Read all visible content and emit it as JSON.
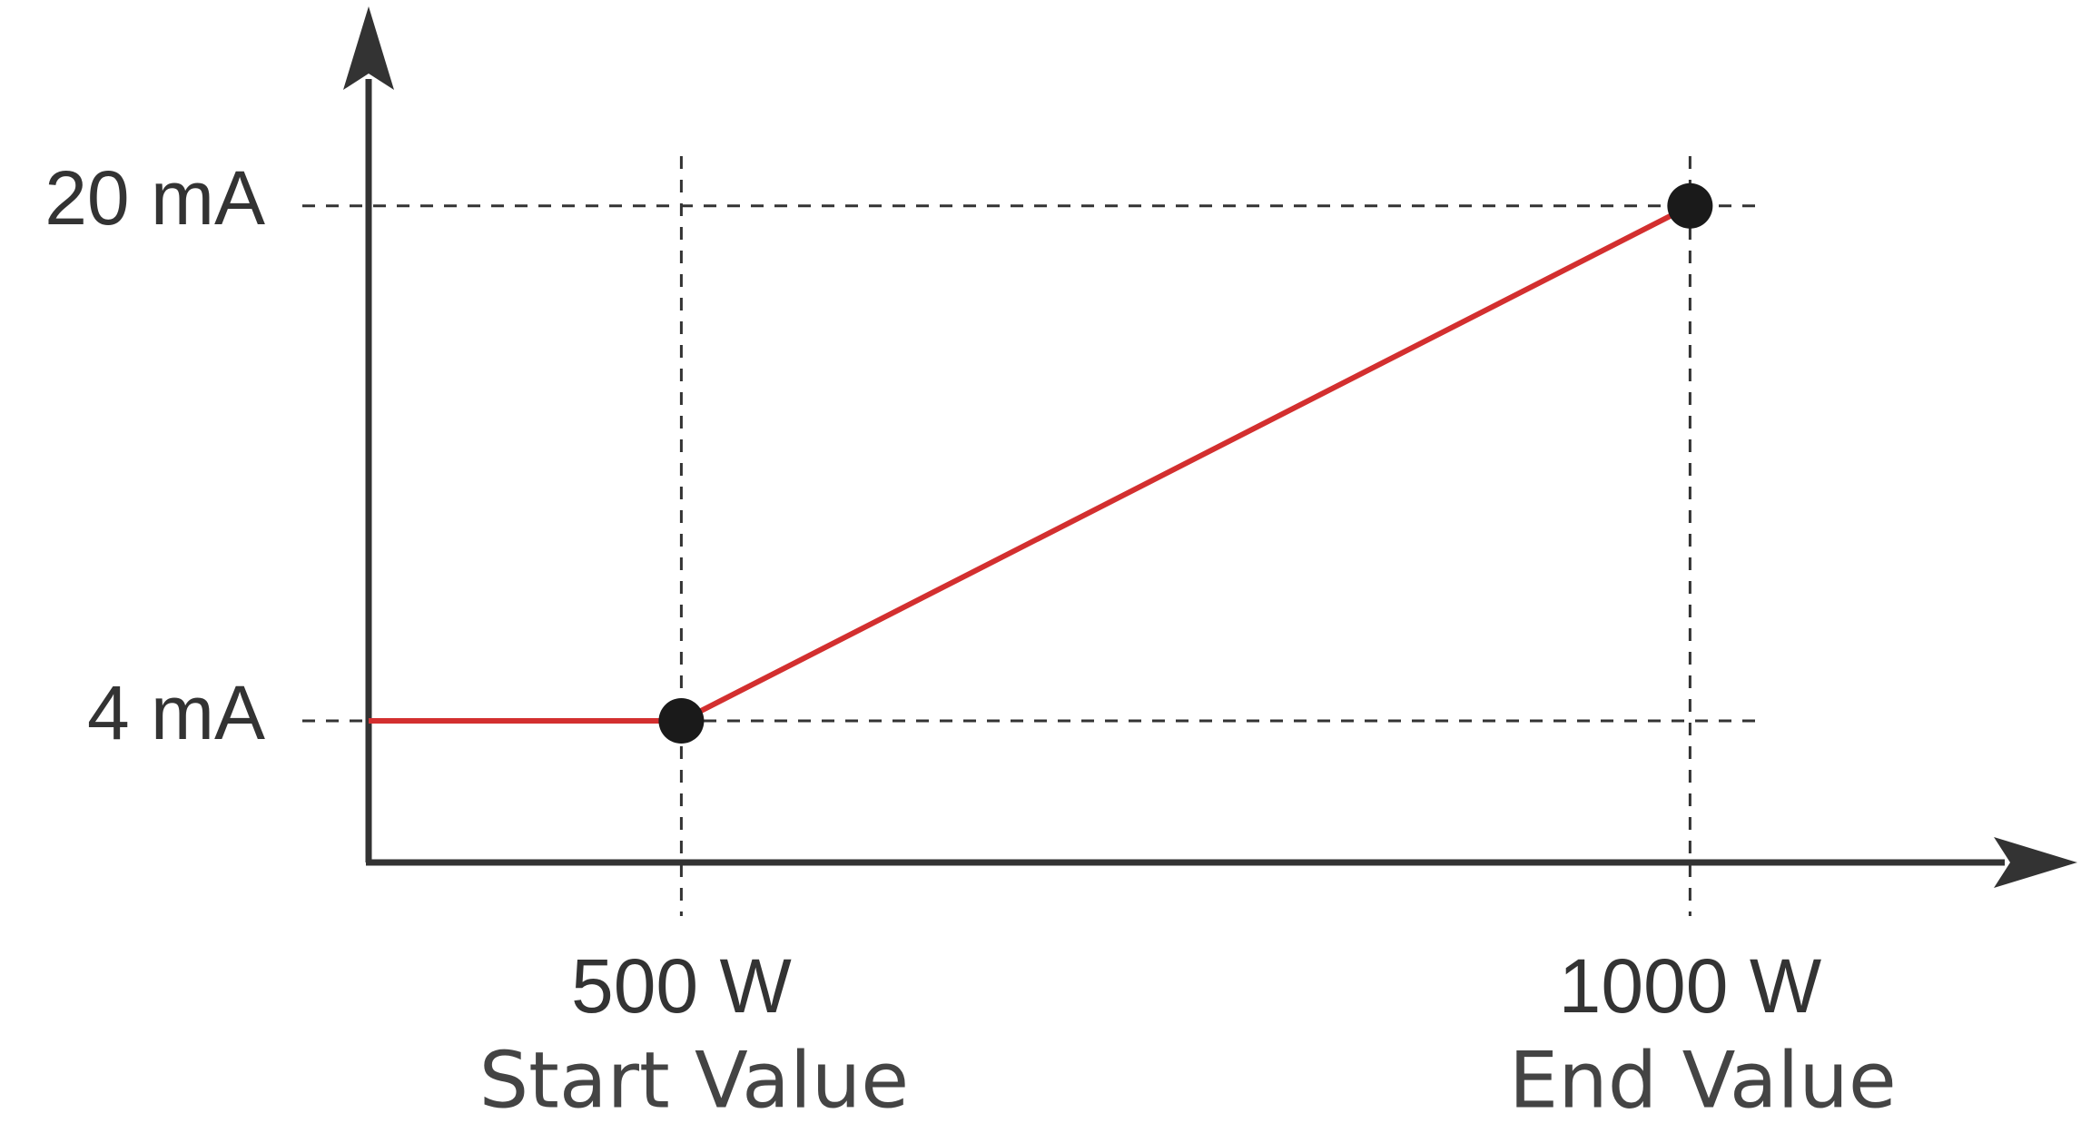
{
  "chart_data": {
    "type": "line",
    "x": [
      345,
      500,
      1000
    ],
    "series": [
      {
        "color": "#d32f2f",
        "values": [
          4,
          4,
          20
        ],
        "markers": [
          false,
          true,
          true
        ],
        "marker_color": "#1a1a1a"
      }
    ],
    "xlim": [
      345,
      1192
    ],
    "ylim": [
      -0.4,
      26.2
    ],
    "xticks": [
      {
        "value": 500,
        "label": "500 W"
      },
      {
        "value": 1000,
        "label": "1000 W"
      }
    ],
    "xtick_notes": [
      "Start Value",
      "End Value"
    ],
    "yticks": [
      {
        "value": 4,
        "label": "4 mA"
      },
      {
        "value": 20,
        "label": "20 mA"
      }
    ],
    "grid": true,
    "grid_style": "dashed"
  }
}
